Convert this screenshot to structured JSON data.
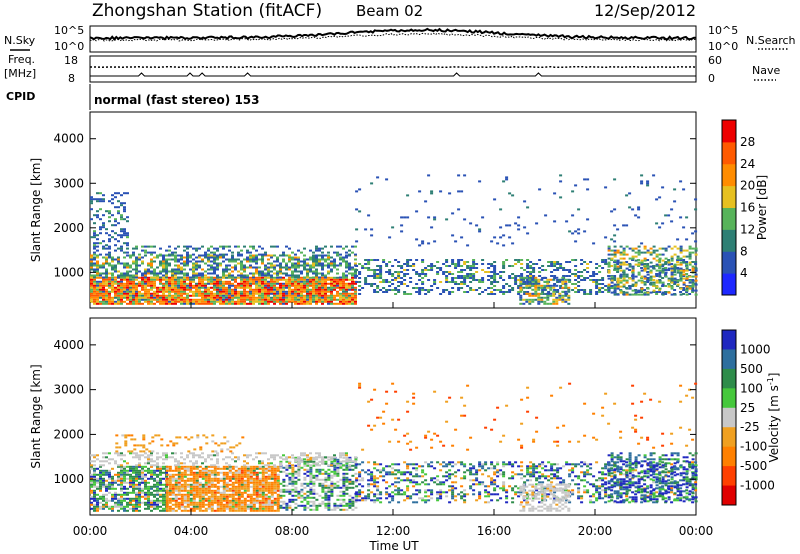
{
  "header": {
    "title": "Zhongshan Station (fitACF)",
    "beam": "Beam 02",
    "date": "12/Sep/2012"
  },
  "left_labels": {
    "nsky": "N.Sky",
    "freq": "Freq.",
    "mhz": "[MHz]",
    "cpid": "CPID"
  },
  "right_labels": {
    "nsearch": "N.Search",
    "nave": "Nave"
  },
  "cpid_text": "normal (fast stereo) 153",
  "noise_panel": {
    "ticks_left": [
      "10^5",
      "10^0"
    ],
    "ticks_right": [
      "10^5",
      "10^0"
    ]
  },
  "freq_panel": {
    "ticks_left": [
      "18",
      "8"
    ],
    "ticks_right": [
      "60",
      "0"
    ]
  },
  "chart_data": [
    {
      "type": "heatmap",
      "name": "power",
      "ylabel": "Slant Range [km]",
      "yticks": [
        "1000",
        "2000",
        "3000",
        "4000"
      ],
      "ylim": [
        200,
        4600
      ],
      "xlim": [
        0,
        24
      ],
      "xticks": [],
      "colorbar": {
        "label": "Power [dB]",
        "ticks": [
          "4",
          "8",
          "12",
          "16",
          "20",
          "24",
          "28"
        ],
        "range": [
          0,
          30
        ],
        "colors": [
          "#1e28ff",
          "#2a52b5",
          "#2e7f74",
          "#57b35a",
          "#e6c020",
          "#ff8c00",
          "#ff5a00",
          "#ee0000"
        ]
      },
      "scatter_regions": [
        {
          "t": [
            0.0,
            10.5
          ],
          "r": [
            300,
            900
          ],
          "density": 0.9,
          "class_weights": [
            0.05,
            0.05,
            0.15,
            0.15,
            0.25,
            0.2,
            0.15
          ]
        },
        {
          "t": [
            0.0,
            10.5
          ],
          "r": [
            900,
            1400
          ],
          "density": 0.6,
          "class_weights": [
            0.3,
            0.25,
            0.3,
            0.1,
            0.05,
            0.0,
            0.0
          ]
        },
        {
          "t": [
            0.0,
            10.5
          ],
          "r": [
            1400,
            1600
          ],
          "density": 0.3,
          "class_weights": [
            0.5,
            0.3,
            0.2,
            0.0,
            0.0,
            0.0,
            0.0
          ]
        },
        {
          "t": [
            0.0,
            1.5
          ],
          "r": [
            1600,
            2800
          ],
          "density": 0.3,
          "class_weights": [
            0.6,
            0.3,
            0.1,
            0.0,
            0.0,
            0.0,
            0.0
          ]
        },
        {
          "t": [
            10.5,
            24.0
          ],
          "r": [
            500,
            1300
          ],
          "density": 0.35,
          "class_weights": [
            0.5,
            0.25,
            0.2,
            0.05,
            0.0,
            0.0,
            0.0
          ]
        },
        {
          "t": [
            17.0,
            19.0
          ],
          "r": [
            300,
            900
          ],
          "density": 0.6,
          "class_weights": [
            0.2,
            0.2,
            0.3,
            0.2,
            0.1,
            0.0,
            0.0
          ]
        },
        {
          "t": [
            20.5,
            24.0
          ],
          "r": [
            500,
            1600
          ],
          "density": 0.45,
          "class_weights": [
            0.2,
            0.2,
            0.3,
            0.2,
            0.1,
            0.0,
            0.0
          ]
        },
        {
          "t": [
            10.5,
            24.0
          ],
          "r": [
            1600,
            3200
          ],
          "density": 0.03,
          "class_weights": [
            0.8,
            0.2,
            0.0,
            0.0,
            0.0,
            0.0,
            0.0
          ]
        }
      ]
    },
    {
      "type": "heatmap",
      "name": "velocity",
      "ylabel": "Slant Range [km]",
      "yticks": [
        "1000",
        "2000",
        "3000",
        "4000"
      ],
      "ylim": [
        200,
        4600
      ],
      "xlim": [
        0,
        24
      ],
      "xlabel": "Time UT",
      "xticks": [
        "00:00",
        "04:00",
        "08:00",
        "12:00",
        "16:00",
        "20:00",
        "00:00"
      ],
      "colorbar": {
        "label": "Velocity [m s",
        "label_sup": "-1",
        "label_end": "]",
        "ticks": [
          "1000",
          "500",
          "100",
          "25",
          "-25",
          "-100",
          "-500",
          "-1000"
        ],
        "colors": [
          "#1f28c0",
          "#2e6f9e",
          "#2e8c4a",
          "#46c83c",
          "#c8c8c8",
          "#f0a020",
          "#ff8000",
          "#ff4000",
          "#e00000"
        ]
      },
      "scatter_regions": [
        {
          "t": [
            0.0,
            3.0
          ],
          "r": [
            300,
            1300
          ],
          "density": 0.7,
          "class_weights": [
            0.1,
            0.1,
            0.35,
            0.2,
            0.15,
            0.05,
            0.05,
            0.0,
            0.0
          ]
        },
        {
          "t": [
            3.0,
            7.5
          ],
          "r": [
            300,
            1300
          ],
          "density": 0.85,
          "class_weights": [
            0.0,
            0.0,
            0.05,
            0.05,
            0.1,
            0.25,
            0.5,
            0.05,
            0.0
          ]
        },
        {
          "t": [
            7.5,
            10.5
          ],
          "r": [
            300,
            1500
          ],
          "density": 0.55,
          "class_weights": [
            0.1,
            0.1,
            0.2,
            0.2,
            0.35,
            0.05,
            0.0,
            0.0,
            0.0
          ]
        },
        {
          "t": [
            0.0,
            10.5
          ],
          "r": [
            1300,
            1600
          ],
          "density": 0.4,
          "class_weights": [
            0.0,
            0.0,
            0.05,
            0.05,
            0.8,
            0.1,
            0.0,
            0.0,
            0.0
          ]
        },
        {
          "t": [
            1.0,
            6.0
          ],
          "r": [
            1600,
            2000
          ],
          "density": 0.2,
          "class_weights": [
            0.0,
            0.0,
            0.0,
            0.0,
            0.1,
            0.7,
            0.2,
            0.0,
            0.0
          ]
        },
        {
          "t": [
            10.5,
            24.0
          ],
          "r": [
            500,
            1400
          ],
          "density": 0.35,
          "class_weights": [
            0.25,
            0.2,
            0.2,
            0.1,
            0.1,
            0.1,
            0.05,
            0.0,
            0.0
          ]
        },
        {
          "t": [
            17.0,
            19.0
          ],
          "r": [
            300,
            900
          ],
          "density": 0.6,
          "class_weights": [
            0.0,
            0.0,
            0.0,
            0.0,
            0.9,
            0.1,
            0.0,
            0.0,
            0.0
          ]
        },
        {
          "t": [
            20.5,
            24.0
          ],
          "r": [
            500,
            1600
          ],
          "density": 0.45,
          "class_weights": [
            0.4,
            0.3,
            0.2,
            0.1,
            0.0,
            0.0,
            0.0,
            0.0,
            0.0
          ]
        },
        {
          "t": [
            10.5,
            24.0
          ],
          "r": [
            1600,
            3200
          ],
          "density": 0.03,
          "class_weights": [
            0.0,
            0.0,
            0.0,
            0.0,
            0.0,
            0.3,
            0.4,
            0.3,
            0.0
          ]
        }
      ]
    }
  ]
}
